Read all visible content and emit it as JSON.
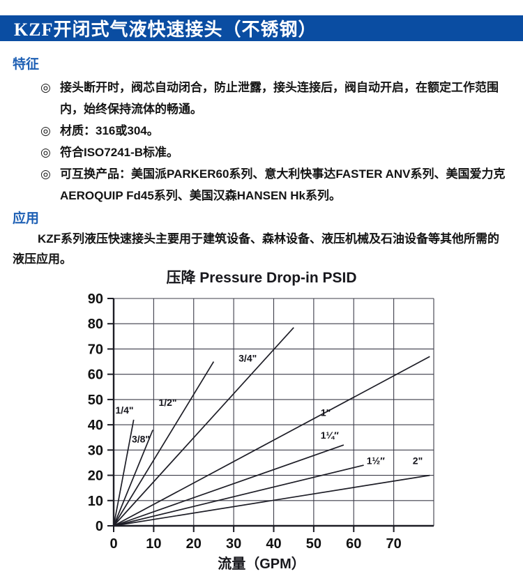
{
  "window": {
    "title": "KZF开闭式气液快速接头（不锈钢）"
  },
  "features": {
    "heading": "特征",
    "bullet": "◎",
    "items": [
      "接头断开时，阀芯自动闭合，防止泄露，接头连接后，阀自动开启，在额定工作范围内，始终保持流体的畅通。",
      "材质：316或304。",
      "符合ISO7241-B标准。",
      "可互换产品：美国派PARKER60系列、意大利快事达FASTER ANV系列、美国爱力克AEROQUIP Fd45系列、美国汉森HANSEN Hk系列。"
    ]
  },
  "application": {
    "heading": "应用",
    "body": "KZF系列液压快速接头主要用于建筑设备、森林设备、液压机械及石油设备等其他所需的液压应用。"
  },
  "colors": {
    "header_bg": "#0a4da2",
    "heading_text": "#1d5fb4",
    "body_text": "#141414",
    "grid": "#3c3c49",
    "series_line": "#1d1d26"
  },
  "chart_data": {
    "type": "line",
    "title": "压降 Pressure Drop-in PSID",
    "xlabel": "流量（GPM）",
    "ylabel": "",
    "xlim": [
      0,
      80
    ],
    "ylim": [
      0,
      90
    ],
    "x_ticks": [
      0,
      10,
      20,
      30,
      40,
      50,
      60,
      70
    ],
    "y_ticks": [
      0,
      10,
      20,
      30,
      40,
      50,
      60,
      70,
      80,
      90
    ],
    "grid": true,
    "legend_position": "inline-labels",
    "series": [
      {
        "name": "1/4 in",
        "label": "1/4\"",
        "points": [
          [
            0,
            0
          ],
          [
            5,
            42
          ]
        ],
        "label_at": [
          2.7,
          44.5
        ]
      },
      {
        "name": "3/8 in",
        "label": "3/8\"",
        "points": [
          [
            0,
            0
          ],
          [
            9.8,
            38
          ]
        ],
        "label_at": [
          6.8,
          33
        ]
      },
      {
        "name": "1/2 in",
        "label": "1/2\"",
        "points": [
          [
            0,
            0
          ],
          [
            25,
            65
          ]
        ],
        "label_at": [
          13.5,
          47.5
        ]
      },
      {
        "name": "3/4 in",
        "label": "3/4\"",
        "points": [
          [
            0,
            0
          ],
          [
            45,
            78.5
          ]
        ],
        "label_at": [
          33.5,
          65
        ]
      },
      {
        "name": "1 in",
        "label": "1\"",
        "points": [
          [
            0,
            0
          ],
          [
            79,
            67
          ]
        ],
        "label_at": [
          53,
          43.5
        ]
      },
      {
        "name": "1-1/4 in",
        "label": "1¼″",
        "points": [
          [
            0,
            0
          ],
          [
            57.5,
            32
          ]
        ],
        "label_at": [
          54,
          34.5
        ]
      },
      {
        "name": "1-1/2 in",
        "label": "1½″",
        "points": [
          [
            0,
            0
          ],
          [
            62.5,
            24
          ]
        ],
        "label_at": [
          65.5,
          24.5
        ]
      },
      {
        "name": "2 in",
        "label": "2\"",
        "points": [
          [
            0,
            0
          ],
          [
            79,
            20
          ]
        ],
        "label_at": [
          76,
          24.5
        ]
      }
    ]
  }
}
